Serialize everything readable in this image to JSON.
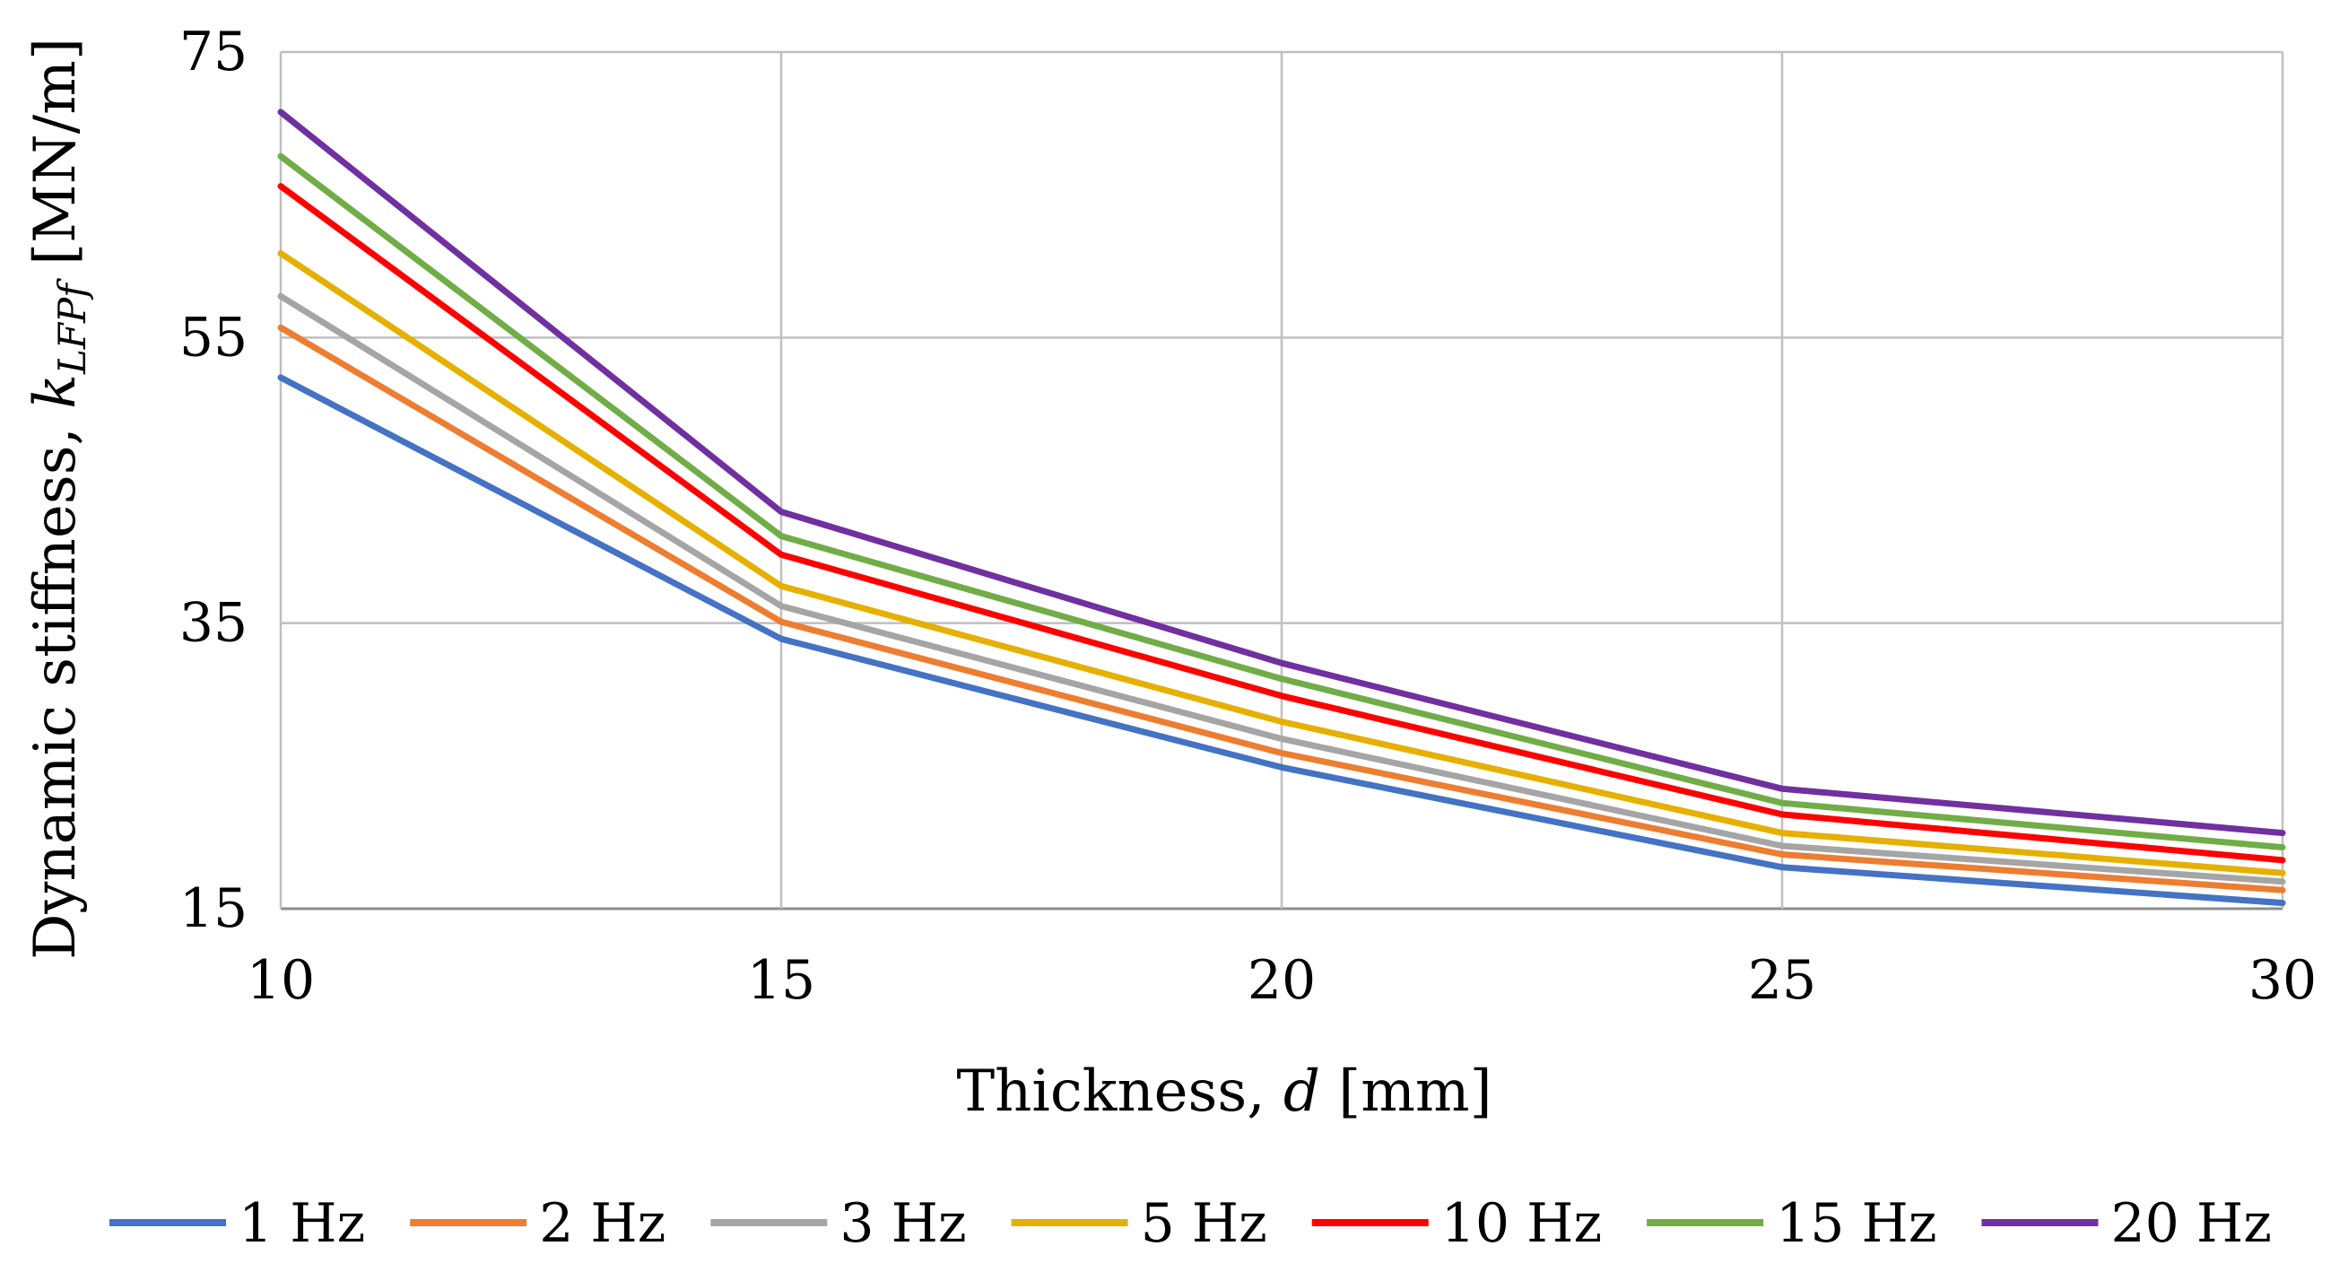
{
  "chart_data": {
    "type": "line",
    "title": "",
    "xlabel": {
      "prefix": "Thickness, ",
      "symbol": "d",
      "unit": " [mm]"
    },
    "ylabel": {
      "prefix": "Dynamic stiffness, ",
      "symbol": "k",
      "subscript": "LFPf",
      "unit": " [MN/m]"
    },
    "x": [
      10,
      15,
      20,
      25,
      30
    ],
    "xlim": [
      10,
      30
    ],
    "ylim": [
      15,
      75
    ],
    "xticks": [
      10,
      15,
      20,
      25,
      30
    ],
    "yticks": [
      15,
      35,
      55,
      75
    ],
    "grid": true,
    "legend_position": "bottom",
    "series": [
      {
        "name": "1 Hz",
        "color": "#4472C4",
        "values": [
          52.2,
          33.9,
          24.9,
          17.9,
          15.4
        ]
      },
      {
        "name": "2 Hz",
        "color": "#ED7D31",
        "values": [
          55.7,
          35.1,
          25.9,
          18.8,
          16.3
        ]
      },
      {
        "name": "3 Hz",
        "color": "#A5A5A5",
        "values": [
          57.9,
          36.2,
          26.9,
          19.4,
          16.9
        ]
      },
      {
        "name": "5 Hz",
        "color": "#E5B000",
        "values": [
          60.9,
          37.6,
          28.1,
          20.3,
          17.5
        ]
      },
      {
        "name": "10 Hz",
        "color": "#FF0000",
        "values": [
          65.6,
          39.8,
          29.9,
          21.6,
          18.4
        ]
      },
      {
        "name": "15 Hz",
        "color": "#70AD47",
        "values": [
          67.7,
          41.1,
          31.1,
          22.4,
          19.3
        ]
      },
      {
        "name": "20 Hz",
        "color": "#7030A0",
        "values": [
          70.8,
          42.8,
          32.2,
          23.4,
          20.3
        ]
      }
    ]
  }
}
